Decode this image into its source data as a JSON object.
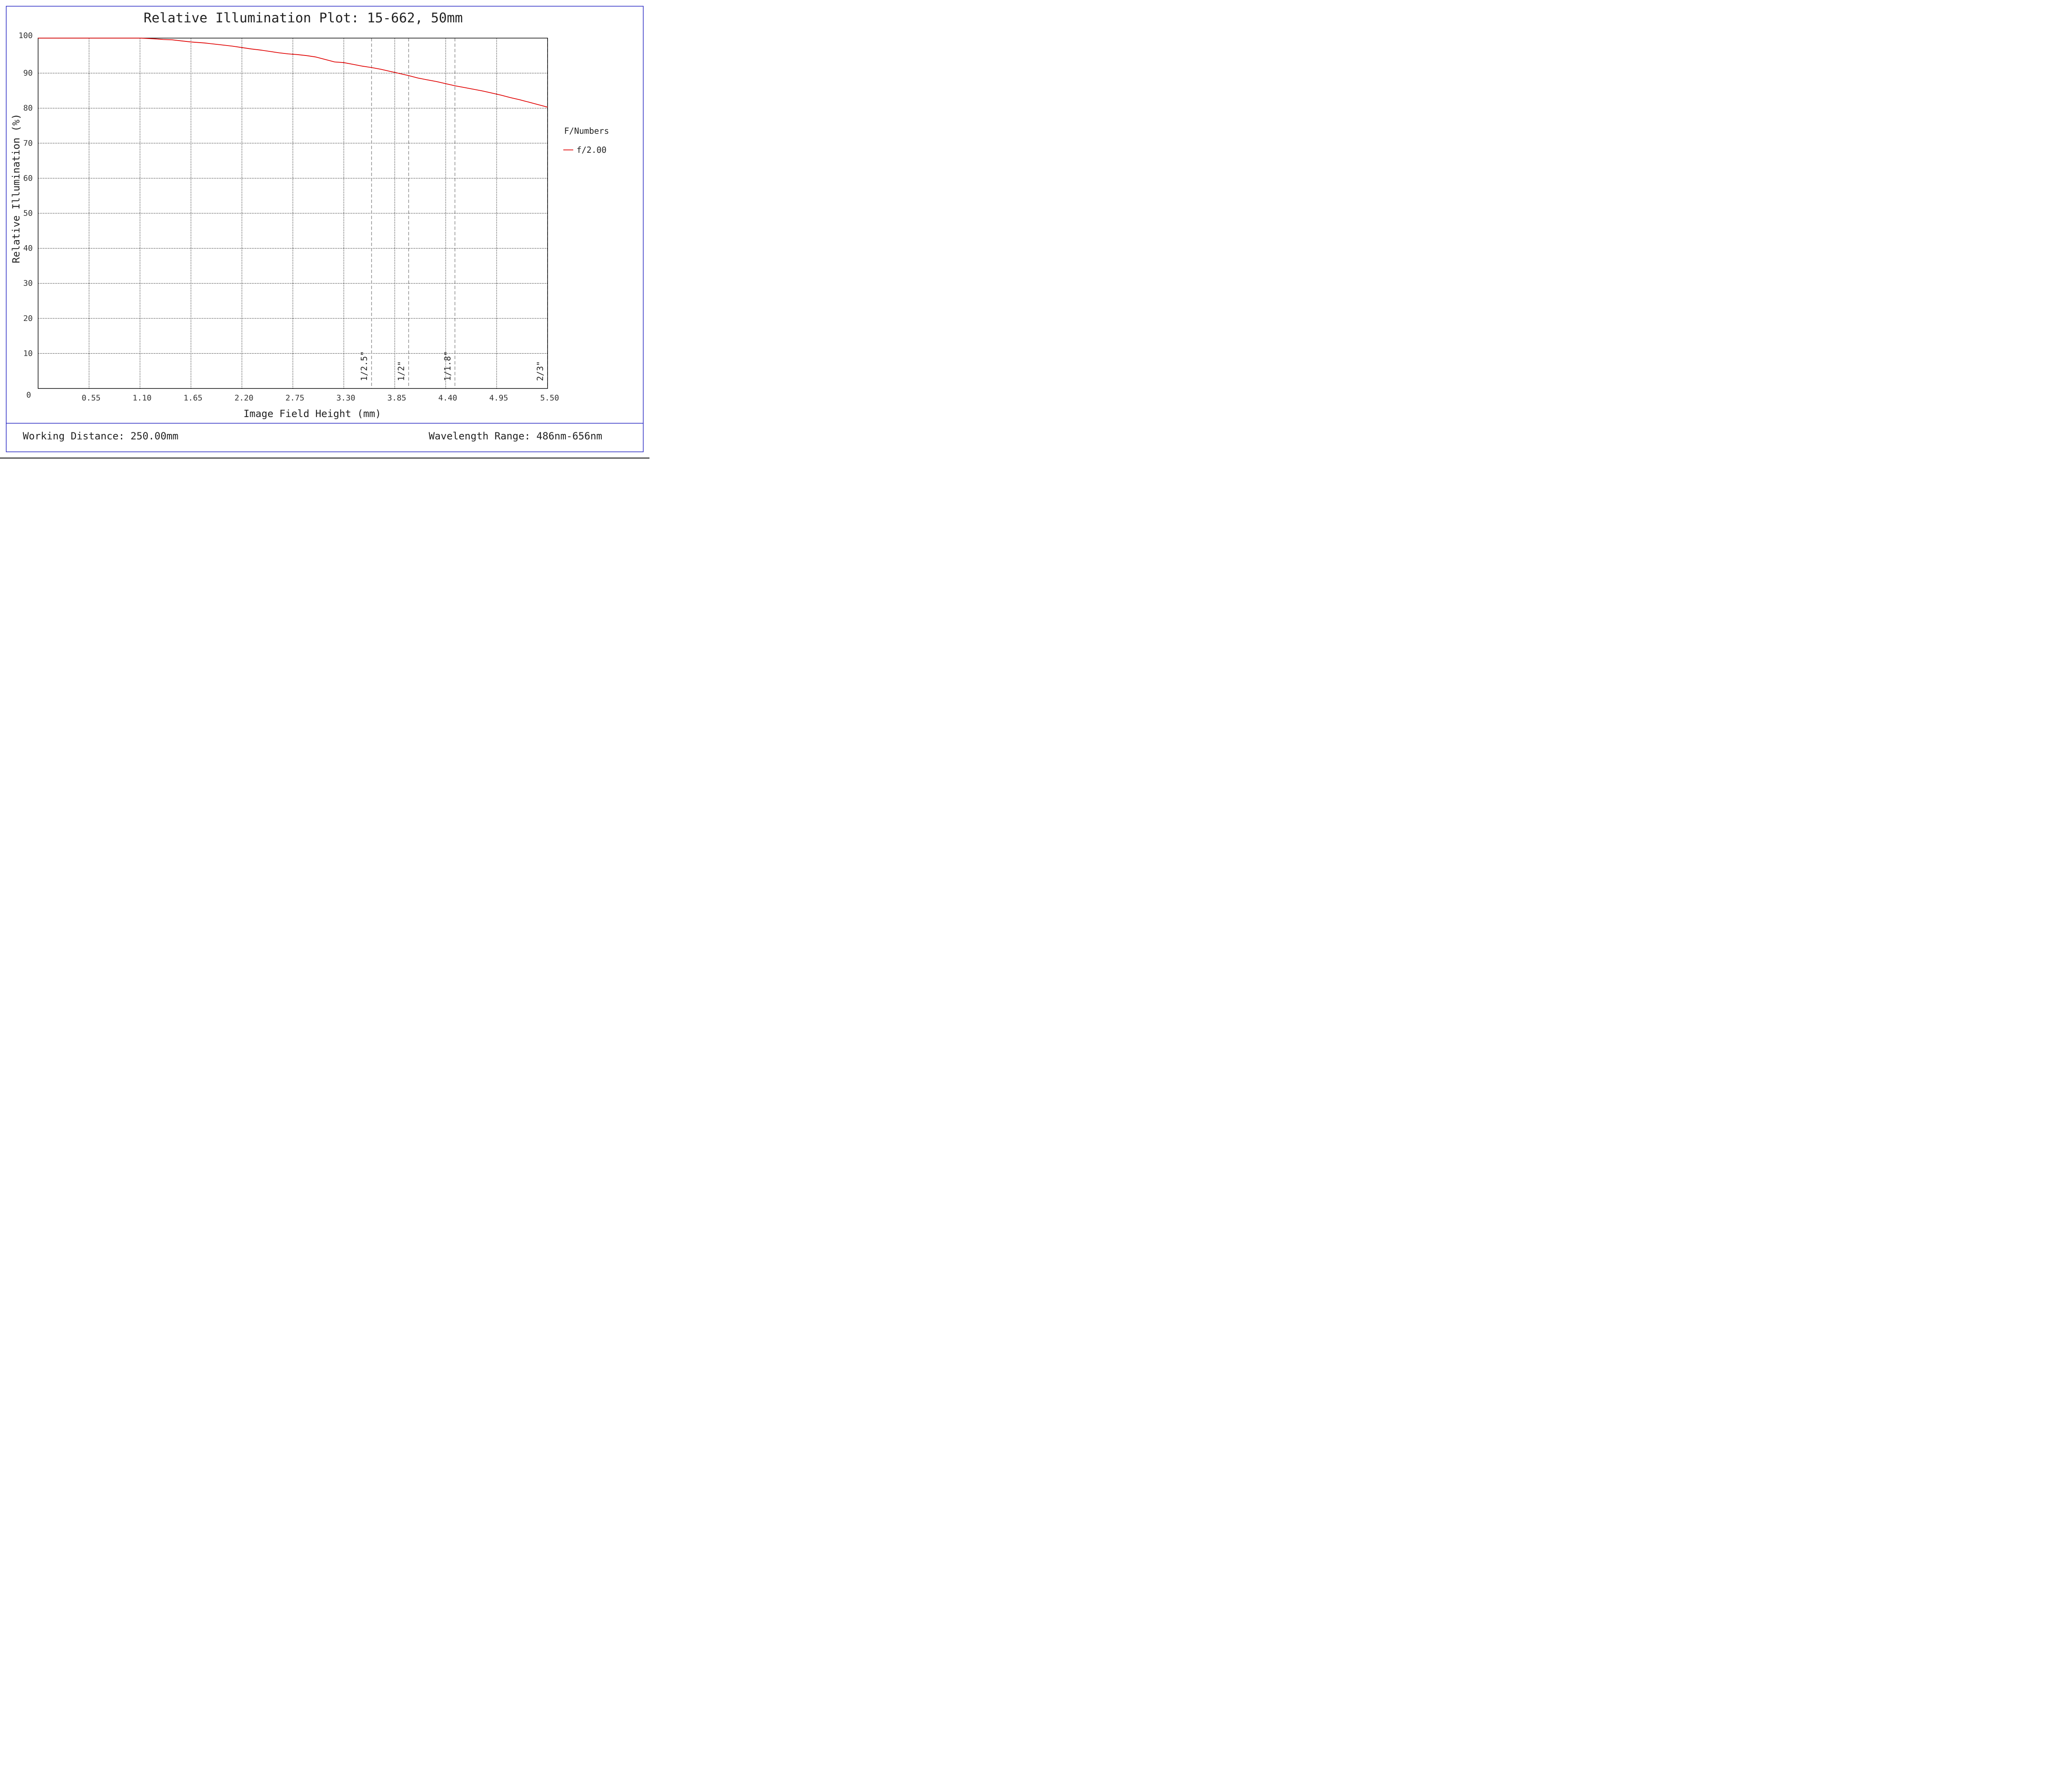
{
  "chart_data": {
    "type": "line",
    "title": "Relative Illumination Plot: 15-662, 50mm",
    "xlabel": "Image Field Height (mm)",
    "ylabel": "Relative Illumination (%)",
    "xlim": [
      0,
      5.5
    ],
    "ylim": [
      0,
      100
    ],
    "x_ticks": [
      0.55,
      1.1,
      1.65,
      2.2,
      2.75,
      3.3,
      3.85,
      4.4,
      4.95,
      5.5
    ],
    "x_tick_labels": [
      "0.55",
      "1.10",
      "1.65",
      "2.20",
      "2.75",
      "3.30",
      "3.85",
      "4.40",
      "4.95",
      "5.50"
    ],
    "y_ticks": [
      0,
      10,
      20,
      30,
      40,
      50,
      60,
      70,
      80,
      90,
      100
    ],
    "y_tick_labels": [
      "0",
      "10",
      "20",
      "30",
      "40",
      "50",
      "60",
      "70",
      "80",
      "90",
      "100"
    ],
    "grid": true,
    "legend": {
      "title": "F/Numbers",
      "placement": "right"
    },
    "series": [
      {
        "name": "f/2.00",
        "color": "#e00000",
        "x": [
          0,
          0.25,
          0.5,
          0.75,
          1.0,
          1.1,
          1.25,
          1.35,
          1.45,
          1.55,
          1.65,
          1.8,
          1.9,
          2.0,
          2.1,
          2.2,
          2.3,
          2.4,
          2.5,
          2.6,
          2.7,
          2.8,
          2.9,
          3.0,
          3.1,
          3.2,
          3.3,
          3.4,
          3.5,
          3.6,
          3.7,
          3.8,
          3.9,
          4.0,
          4.1,
          4.2,
          4.3,
          4.4,
          4.5,
          4.6,
          4.7,
          4.8,
          4.9,
          5.0,
          5.1,
          5.2,
          5.3,
          5.4,
          5.5
        ],
        "y": [
          100,
          100,
          100,
          100,
          100,
          100,
          99.8,
          99.6,
          99.5,
          99.2,
          98.9,
          98.6,
          98.3,
          98.0,
          97.7,
          97.3,
          96.9,
          96.6,
          96.2,
          95.8,
          95.5,
          95.3,
          95.0,
          94.6,
          93.9,
          93.2,
          93.0,
          92.5,
          92.0,
          91.6,
          91.1,
          90.5,
          89.9,
          89.3,
          88.6,
          88.1,
          87.6,
          87.0,
          86.4,
          85.9,
          85.4,
          84.9,
          84.3,
          83.7,
          83.0,
          82.4,
          81.7,
          81.0,
          80.3
        ]
      }
    ],
    "sensor_markers": [
      {
        "label": "1/2.5\"",
        "x": 3.6
      },
      {
        "label": "1/2\"",
        "x": 4.0
      },
      {
        "label": "1/1.8\"",
        "x": 4.5
      },
      {
        "label": "2/3\"",
        "x": 5.5
      }
    ]
  },
  "footer": {
    "working_distance": "Working Distance: 250.00mm",
    "wavelength_range": "Wavelength Range: 486nm-656nm"
  }
}
